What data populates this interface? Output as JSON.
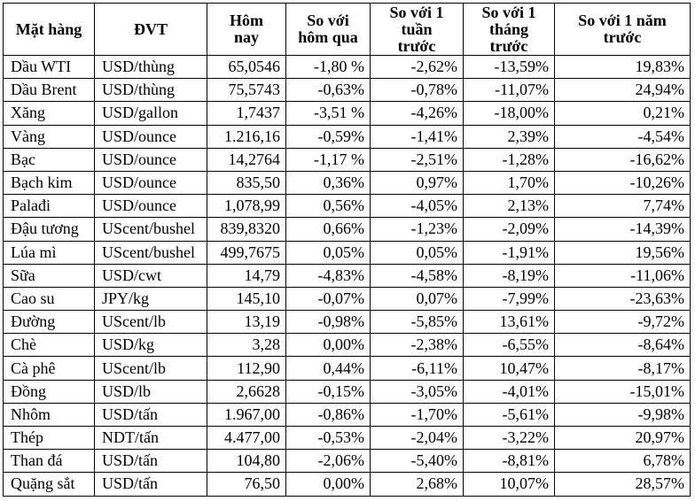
{
  "table": {
    "headers": [
      "Mặt hàng",
      "ĐVT",
      "Hôm\nnay",
      "So với\nhôm qua",
      "So với 1\ntuần\ntrước",
      "So với 1\ntháng\ntrước",
      "So với 1 năm\ntrước"
    ],
    "rows": [
      {
        "name": "Dầu WTI",
        "unit": "USD/thùng",
        "today": "65,0546",
        "vs_yesterday": "-1,80 %",
        "vs_week": "-2,62%",
        "vs_month": "-13,59%",
        "vs_year": "19,83%"
      },
      {
        "name": "Dầu Brent",
        "unit": "USD/thùng",
        "today": "75,5743",
        "vs_yesterday": "-0,63%",
        "vs_week": "-0,78%",
        "vs_month": "-11,07%",
        "vs_year": "24,94%"
      },
      {
        "name": "Xăng",
        "unit": "USD/gallon",
        "today": "1,7437",
        "vs_yesterday": "-3,51 %",
        "vs_week": "-4,26%",
        "vs_month": "-18,00%",
        "vs_year": "0,21%"
      },
      {
        "name": "Vàng",
        "unit": "USD/ounce",
        "today": "1.216,16",
        "vs_yesterday": "-0,59%",
        "vs_week": "-1,41%",
        "vs_month": "2,39%",
        "vs_year": "-4,54%"
      },
      {
        "name": "Bạc",
        "unit": "USD/ounce",
        "today": "14,2764",
        "vs_yesterday": "-1,17 %",
        "vs_week": "-2,51%",
        "vs_month": "-1,28%",
        "vs_year": "-16,62%"
      },
      {
        "name": "Bạch kim",
        "unit": "USD/ounce",
        "today": "835,50",
        "vs_yesterday": "0,36%",
        "vs_week": "0,97%",
        "vs_month": "1,70%",
        "vs_year": "-10,26%"
      },
      {
        "name": "Palađi",
        "unit": "USD/ounce",
        "today": "1,078,99",
        "vs_yesterday": "0,56%",
        "vs_week": "-4,05%",
        "vs_month": "2,13%",
        "vs_year": "7,74%"
      },
      {
        "name": "Đậu tương",
        "unit": "UScent/bushel",
        "today": "839,8320",
        "vs_yesterday": "0,66%",
        "vs_week": "-1,23%",
        "vs_month": "-2,09%",
        "vs_year": "-14,39%"
      },
      {
        "name": "Lúa mì",
        "unit": "UScent/bushel",
        "today": "499,7675",
        "vs_yesterday": "0,05%",
        "vs_week": "0,05%",
        "vs_month": "-1,91%",
        "vs_year": "19,56%"
      },
      {
        "name": "Sữa",
        "unit": "USD/cwt",
        "today": "14,79",
        "vs_yesterday": "-4,83%",
        "vs_week": "-4,58%",
        "vs_month": "-8,19%",
        "vs_year": "-11,06%"
      },
      {
        "name": "Cao su",
        "unit": "JPY/kg",
        "today": "145,10",
        "vs_yesterday": "-0,07%",
        "vs_week": "0,07%",
        "vs_month": "-7,99%",
        "vs_year": "-23,63%"
      },
      {
        "name": "Đường",
        "unit": "UScent/lb",
        "today": "13,19",
        "vs_yesterday": "-0,98%",
        "vs_week": "-5,85%",
        "vs_month": "13,61%",
        "vs_year": "-9,72%"
      },
      {
        "name": "Chè",
        "unit": "USD/kg",
        "today": "3,28",
        "vs_yesterday": "0,00%",
        "vs_week": "-2,38%",
        "vs_month": "-6,55%",
        "vs_year": "-8,64%"
      },
      {
        "name": "Cà phê",
        "unit": "UScent/lb",
        "today": "112,90",
        "vs_yesterday": "0,44%",
        "vs_week": "-6,11%",
        "vs_month": "10,47%",
        "vs_year": "-8,17%"
      },
      {
        "name": "Đồng",
        "unit": "USD/lb",
        "today": "2,6628",
        "vs_yesterday": "-0,15%",
        "vs_week": "-3,05%",
        "vs_month": "-4,01%",
        "vs_year": "-15,01%"
      },
      {
        "name": "Nhôm",
        "unit": "USD/tấn",
        "today": "1.967,00",
        "vs_yesterday": "-0,86%",
        "vs_week": "-1,70%",
        "vs_month": "-5,61%",
        "vs_year": "-9,98%"
      },
      {
        "name": "Thép",
        "unit": "NDT/tấn",
        "today": "4.477,00",
        "vs_yesterday": "-0,53%",
        "vs_week": "-2,04%",
        "vs_month": "-3,22%",
        "vs_year": "20,97%"
      },
      {
        "name": "Than đá",
        "unit": "USD/tấn",
        "today": "104,80",
        "vs_yesterday": "-2,06%",
        "vs_week": "-5,40%",
        "vs_month": "-8,81%",
        "vs_year": "6,78%"
      },
      {
        "name": "Quặng sắt",
        "unit": "USD/tấn",
        "today": "76,50",
        "vs_yesterday": "0,00%",
        "vs_week": "2,68%",
        "vs_month": "10,07%",
        "vs_year": "28,57%"
      }
    ]
  }
}
